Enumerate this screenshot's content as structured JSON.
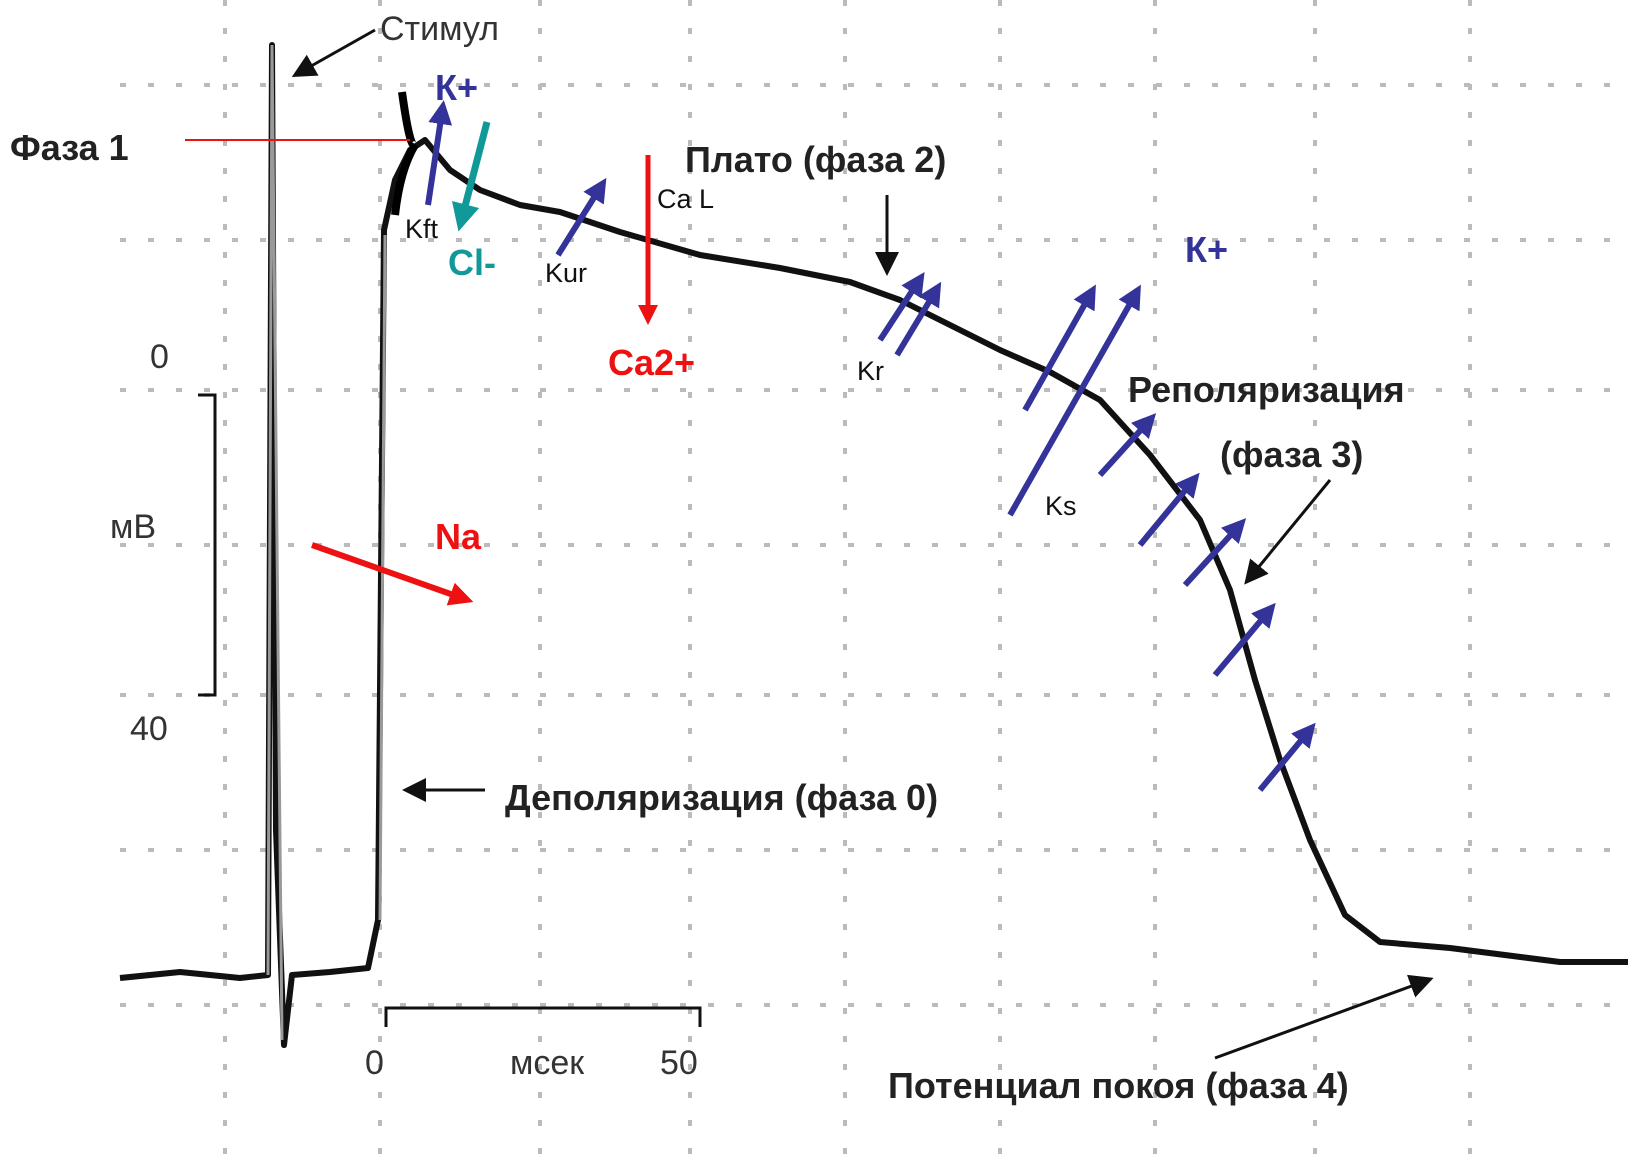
{
  "labels": {
    "stimulus": "Стимул",
    "phase1": "Фаза 1",
    "k_plus_top": "К+",
    "kft": "Kft",
    "cl": "Cl-",
    "kur": "Kur",
    "ca_l": "Ca L",
    "ca2": "Ca2+",
    "plateau": "Плато (фаза 2)",
    "k_plus_right": "К+",
    "kr": "Kr",
    "repolarization": "Реполяризация",
    "phase3": "(фаза 3)",
    "ks": "Ks",
    "na": "Na",
    "depolarization": "Деполяризация (фаза 0)",
    "rest": "Потенциал покоя (фаза 4)"
  },
  "scale_bars": {
    "voltage": {
      "top": "0",
      "unit": "мВ",
      "bottom": "40"
    },
    "time": {
      "start": "0",
      "unit": "мсек",
      "end": "50"
    }
  }
}
